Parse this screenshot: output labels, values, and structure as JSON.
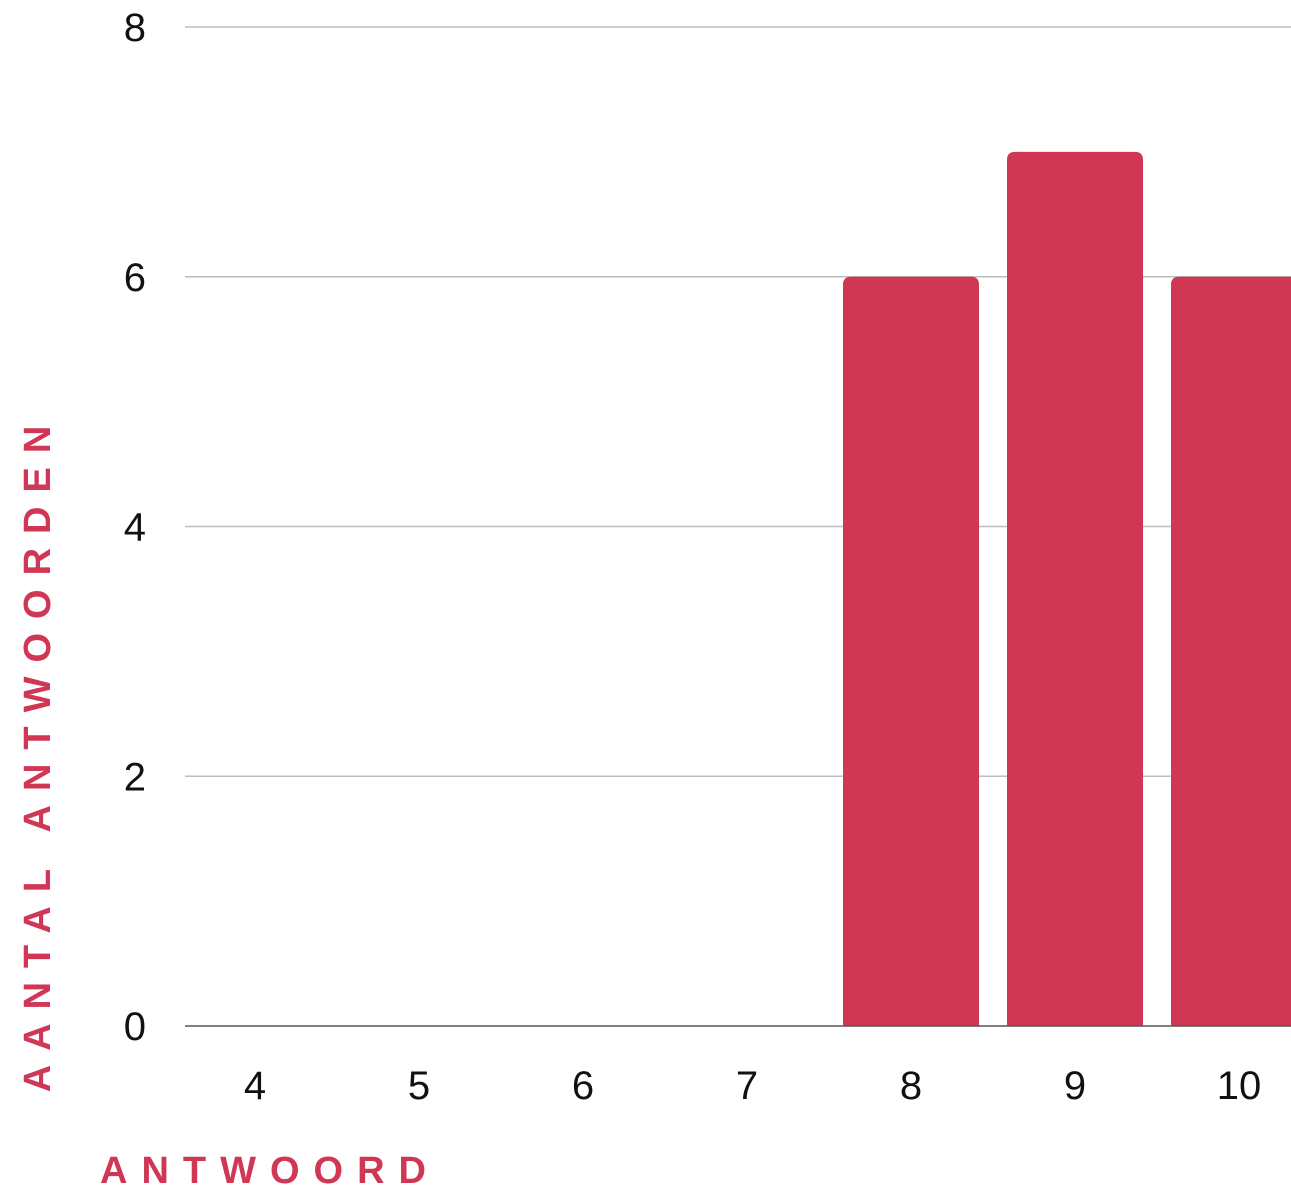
{
  "chart_data": {
    "type": "bar",
    "title": "",
    "xlabel": "ANTWOORD",
    "ylabel": "AANTAL ANTWOORDEN",
    "categories": [
      "4",
      "5",
      "6",
      "7",
      "8",
      "9",
      "10"
    ],
    "values": [
      0,
      0,
      0,
      0,
      6,
      7,
      6
    ],
    "ylim": [
      0,
      8
    ],
    "yticks": [
      "0",
      "2",
      "4",
      "6",
      "8"
    ],
    "grid": true,
    "legend": "none",
    "colors": {
      "bar": "#CF3755",
      "axis_title": "#CF3755",
      "grid": "#BDBDBD",
      "baseline": "#555555",
      "tick_text": "#111111"
    }
  }
}
